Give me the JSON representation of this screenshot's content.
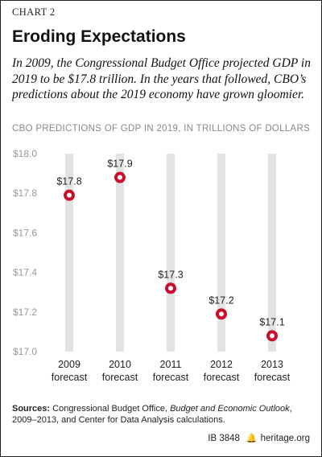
{
  "header": {
    "kicker": "CHART 2",
    "title": "Eroding Expectations",
    "subtitle": "In 2009, the Congressional Budget Office projected GDP in 2019 to be $17.8 trillion. In the years that followed, CBO’s predictions about the 2019 economy have grown gloomier."
  },
  "chart_heading": "CBO PREDICTIONS OF GDP IN 2019, IN TRILLIONS OF DOLLARS",
  "chart_data": {
    "type": "scatter",
    "title": "",
    "xlabel": "",
    "ylabel": "",
    "ylim": [
      17.0,
      18.0
    ],
    "yticks": [
      17.0,
      17.2,
      17.4,
      17.6,
      17.8,
      18.0
    ],
    "ytick_labels": [
      "$17.0",
      "$17.2",
      "$17.4",
      "$17.6",
      "$17.8",
      "$18.0"
    ],
    "categories": [
      {
        "year": "2009",
        "label": "forecast"
      },
      {
        "year": "2010",
        "label": "forecast"
      },
      {
        "year": "2011",
        "label": "forecast"
      },
      {
        "year": "2012",
        "label": "forecast"
      },
      {
        "year": "2013",
        "label": "forecast"
      }
    ],
    "values": [
      17.79,
      17.88,
      17.32,
      17.19,
      17.08
    ],
    "data_labels": [
      "$17.8",
      "$17.9",
      "$17.3",
      "$17.2",
      "$17.1"
    ],
    "grid": true,
    "colors": {
      "marker": "#c8102e",
      "column": "#e3e3e3",
      "tick_text": "#999999"
    }
  },
  "sources": {
    "label": "Sources:",
    "text_a": " Congressional Budget Office, ",
    "title_italic": "Budget and Economic Outlook",
    "text_b": ", 2009–2013, and Center for Data Analysis calculations."
  },
  "footer": {
    "code": "IB 3848",
    "icon": "bell-icon",
    "site": "heritage.org"
  }
}
